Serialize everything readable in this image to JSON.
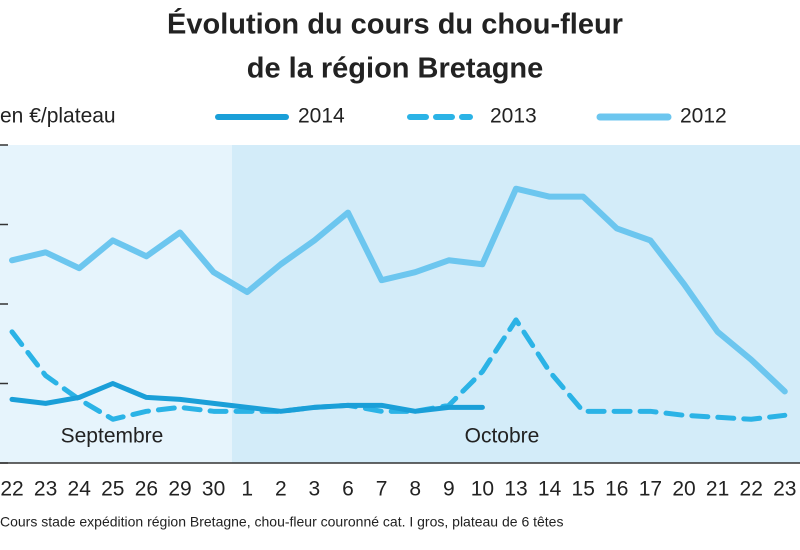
{
  "chart_data": {
    "type": "line",
    "title": "Évolution du cours du chou-fleur",
    "subtitle": "de la région Bretagne",
    "y_label": "en €/plateau",
    "note": "Cours stade expédition région Bretagne, chou-fleur couronné cat. I gros, plateau de 6 têtes",
    "annotations": [
      "Septembre",
      "Octobre"
    ],
    "categories": [
      "22",
      "23",
      "24",
      "25",
      "26",
      "29",
      "30",
      "1",
      "2",
      "3",
      "6",
      "7",
      "8",
      "9",
      "10",
      "13",
      "14",
      "15",
      "16",
      "17",
      "20",
      "21",
      "22",
      "23"
    ],
    "series": [
      {
        "name": "2014",
        "color": "#1a9fd8",
        "style": "solid",
        "values": [
          1.6,
          1.5,
          1.65,
          2.0,
          1.65,
          1.6,
          1.5,
          1.4,
          1.3,
          1.4,
          1.45,
          1.45,
          1.3,
          1.4,
          1.4,
          null,
          null,
          null,
          null,
          null,
          null,
          null,
          null,
          null
        ]
      },
      {
        "name": "2013",
        "color": "#2bb3e6",
        "style": "dashed",
        "values": [
          3.3,
          2.2,
          1.6,
          1.1,
          1.3,
          1.4,
          1.3,
          1.3,
          1.3,
          1.4,
          1.45,
          1.3,
          1.3,
          1.45,
          2.3,
          3.6,
          2.3,
          1.3,
          1.3,
          1.3,
          1.2,
          1.15,
          1.1,
          1.2
        ]
      },
      {
        "name": "2012",
        "color": "#6cc6ef",
        "style": "solid",
        "values": [
          5.1,
          5.3,
          4.9,
          5.6,
          5.2,
          5.8,
          4.8,
          4.3,
          5.0,
          5.6,
          6.3,
          4.6,
          4.8,
          5.1,
          5.0,
          6.9,
          6.7,
          6.7,
          5.9,
          5.6,
          4.5,
          3.3,
          2.6,
          1.8
        ]
      }
    ],
    "ylim": [
      0,
      8
    ],
    "yticks": [
      0,
      2,
      4,
      6,
      8
    ],
    "grid": false
  }
}
